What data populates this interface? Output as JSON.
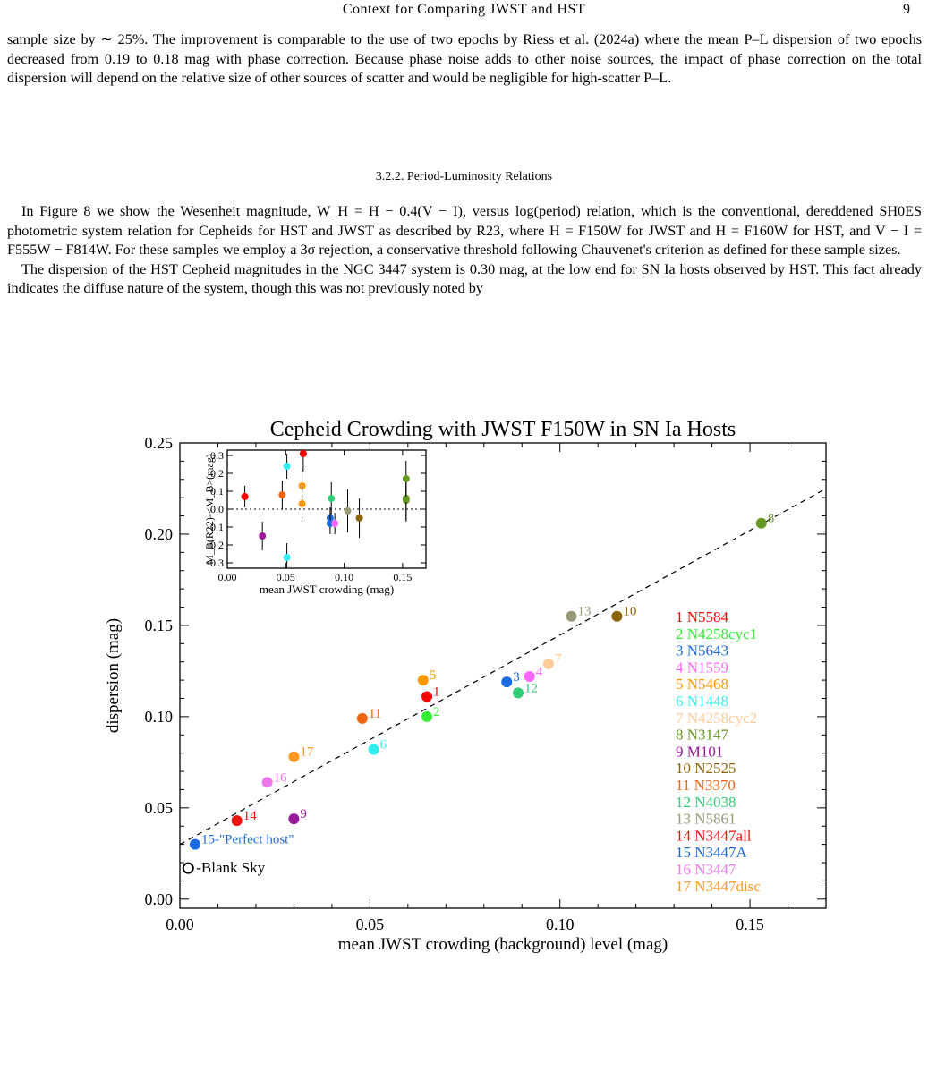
{
  "header": {
    "running_title": "Context for Comparing JWST and HST",
    "page_number": "9"
  },
  "para1": "sample size by ∼ 25%. The improvement is comparable to the use of two epochs by Riess et al. (2024a) where the mean P–L dispersion of two epochs decreased from 0.19 to 0.18 mag with phase correction. Because phase noise adds to other noise sources, the impact of phase correction on the total dispersion will depend on the relative size of other sources of scatter and would be negligible for high-scatter P–L.",
  "section_title": "3.2.2.  Period-Luminosity Relations",
  "para2": "In Figure 8 we show the Wesenheit magnitude, W_H = H − 0.4(V − I), versus log(period) relation, which is the conventional, dereddened SH0ES photometric system relation for Cepheids for HST and JWST as described by R23, where H = F150W for JWST and H = F160W for HST, and V − I = F555W − F814W. For these samples we employ a 3σ rejection, a conservative threshold following Chauvenet's criterion as defined for these sample sizes.",
  "para3": "The dispersion of the HST Cepheid magnitudes in the NGC 3447 system is 0.30 mag, at the low end for SN Ia hosts observed by HST. This fact already indicates the diffuse nature of the system, though this was not previously noted by",
  "chart_data": [
    {
      "type": "scatter",
      "title": "Cepheid Crowding with JWST F150W in SN Ia Hosts",
      "xlabel": "mean JWST crowding (background) level (mag)",
      "ylabel": "dispersion (mag)",
      "xlim": [
        0.0,
        0.17
      ],
      "ylim": [
        -0.005,
        0.25
      ],
      "xticks": [
        "0.00",
        "0.05",
        "0.10",
        "0.15"
      ],
      "yticks": [
        "0.00",
        "0.05",
        "0.10",
        "0.15",
        "0.20",
        "0.25"
      ],
      "fit_line": {
        "style": "dashed",
        "x": [
          0.0,
          0.17
        ],
        "y": [
          0.03,
          0.225
        ]
      },
      "points": [
        {
          "id": "1",
          "x": 0.065,
          "y": 0.111,
          "color": "#ff0000",
          "label": "1"
        },
        {
          "id": "2",
          "x": 0.065,
          "y": 0.1,
          "color": "#33ee33",
          "label": "2"
        },
        {
          "id": "3",
          "x": 0.086,
          "y": 0.119,
          "color": "#1a6be0",
          "label": "3"
        },
        {
          "id": "4",
          "x": 0.092,
          "y": 0.122,
          "color": "#ff66ff",
          "label": "4"
        },
        {
          "id": "5",
          "x": 0.064,
          "y": 0.12,
          "color": "#ff9900",
          "label": "5"
        },
        {
          "id": "6",
          "x": 0.051,
          "y": 0.082,
          "color": "#33eeee",
          "label": "6"
        },
        {
          "id": "7",
          "x": 0.097,
          "y": 0.129,
          "color": "#ffcc99",
          "label": "7"
        },
        {
          "id": "8",
          "x": 0.153,
          "y": 0.206,
          "color": "#669922",
          "label": "8"
        },
        {
          "id": "9",
          "x": 0.03,
          "y": 0.044,
          "color": "#991a99",
          "label": "9"
        },
        {
          "id": "10",
          "x": 0.115,
          "y": 0.155,
          "color": "#8b6508",
          "label": "10"
        },
        {
          "id": "11",
          "x": 0.048,
          "y": 0.099,
          "color": "#ee6611",
          "label": "11"
        },
        {
          "id": "12",
          "x": 0.089,
          "y": 0.113,
          "color": "#33cc77",
          "label": "12"
        },
        {
          "id": "13",
          "x": 0.103,
          "y": 0.155,
          "color": "#999977",
          "label": "13"
        },
        {
          "id": "14",
          "x": 0.015,
          "y": 0.043,
          "color": "#ee1111",
          "label": "14"
        },
        {
          "id": "15",
          "x": 0.004,
          "y": 0.03,
          "color": "#1a6be0",
          "label": "15-\"Perfect host\""
        },
        {
          "id": "16",
          "x": 0.023,
          "y": 0.064,
          "color": "#ee77ee",
          "label": "16"
        },
        {
          "id": "17",
          "x": 0.03,
          "y": 0.078,
          "color": "#ff9922",
          "label": "17"
        }
      ],
      "blank_sky": {
        "x": 0.001,
        "y": 0.017,
        "label": "-Blank Sky"
      },
      "legend": [
        {
          "text": "1 N5584",
          "color": "#ff0000"
        },
        {
          "text": "2 N4258cyc1",
          "color": "#33ee33"
        },
        {
          "text": "3 N5643",
          "color": "#1a6be0"
        },
        {
          "text": "4 N1559",
          "color": "#ff66ff"
        },
        {
          "text": "5 N5468",
          "color": "#ff9900"
        },
        {
          "text": "6 N1448",
          "color": "#33eeee"
        },
        {
          "text": "7 N4258cyc2",
          "color": "#ffcc99"
        },
        {
          "text": "8 N3147",
          "color": "#669922"
        },
        {
          "text": "9 M101",
          "color": "#991a99"
        },
        {
          "text": "10 N2525",
          "color": "#8b6508"
        },
        {
          "text": "11 N3370",
          "color": "#ee6611"
        },
        {
          "text": "12 N4038",
          "color": "#33cc77"
        },
        {
          "text": "13 N5861",
          "color": "#999977"
        },
        {
          "text": "14 N3447all",
          "color": "#ee1111"
        },
        {
          "text": "15 N3447A",
          "color": "#1a6be0"
        },
        {
          "text": "16 N3447",
          "color": "#ee77ee"
        },
        {
          "text": "17 N3447disc",
          "color": "#ff9922"
        }
      ],
      "legend_placement": "right"
    },
    {
      "type": "scatter",
      "xlabel": "mean JWST crowding (mag)",
      "ylabel": "M_B(R22)-<M_B>(mag)",
      "xlim": [
        0.0,
        0.17
      ],
      "ylim": [
        -0.33,
        0.33
      ],
      "xticks": [
        "0.00",
        "0.05",
        "0.10",
        "0.15"
      ],
      "yticks": [
        "-0.3",
        "-0.2",
        "-0.1",
        "0.0",
        "0.1",
        "0.2",
        "0.3"
      ],
      "zero_line": "dotted",
      "points": [
        {
          "x": 0.015,
          "y": 0.07,
          "err": 0.06,
          "color": "#ff0000"
        },
        {
          "x": 0.03,
          "y": -0.15,
          "err": 0.08,
          "color": "#991a99"
        },
        {
          "x": 0.047,
          "y": 0.08,
          "err": 0.08,
          "color": "#ee6611"
        },
        {
          "x": 0.051,
          "y": 0.24,
          "err": 0.07,
          "color": "#33eeee"
        },
        {
          "x": 0.051,
          "y": -0.27,
          "err": 0.08,
          "color": "#33eeee"
        },
        {
          "x": 0.064,
          "y": 0.13,
          "err": 0.1,
          "color": "#ff9900"
        },
        {
          "x": 0.064,
          "y": 0.03,
          "err": 0.1,
          "color": "#ff9900"
        },
        {
          "x": 0.065,
          "y": 0.31,
          "err": 0.1,
          "color": "#ff0000"
        },
        {
          "x": 0.088,
          "y": -0.05,
          "err": 0.06,
          "color": "#1a6be0"
        },
        {
          "x": 0.088,
          "y": -0.08,
          "err": 0.06,
          "color": "#1a6be0"
        },
        {
          "x": 0.089,
          "y": 0.06,
          "err": 0.09,
          "color": "#33cc77"
        },
        {
          "x": 0.092,
          "y": -0.08,
          "err": 0.06,
          "color": "#ff66ff"
        },
        {
          "x": 0.103,
          "y": -0.01,
          "err": 0.12,
          "color": "#999977"
        },
        {
          "x": 0.113,
          "y": -0.05,
          "err": 0.11,
          "color": "#8b6508"
        },
        {
          "x": 0.153,
          "y": 0.05,
          "err": 0.12,
          "color": "#669922"
        },
        {
          "x": 0.153,
          "y": 0.06,
          "err": 0.12,
          "color": "#669922"
        },
        {
          "x": 0.153,
          "y": 0.17,
          "err": 0.1,
          "color": "#669922"
        }
      ]
    }
  ]
}
